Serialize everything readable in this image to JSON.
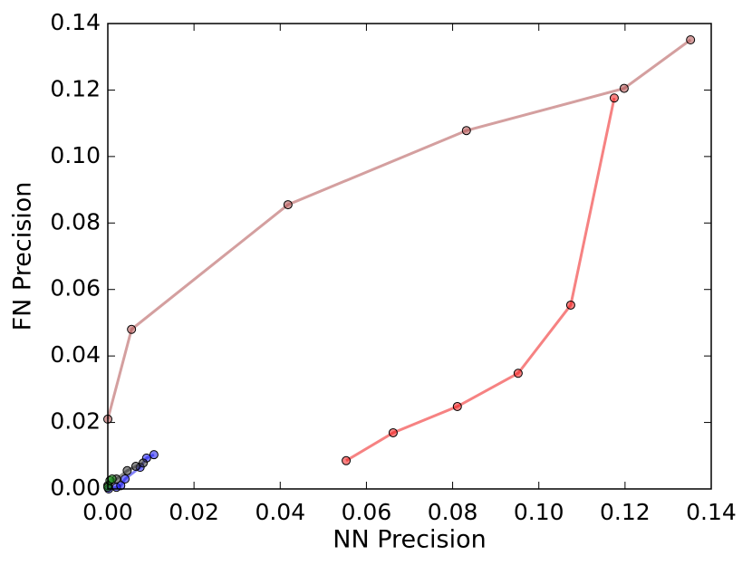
{
  "chart_data": {
    "type": "line",
    "x_label": "NN Precision",
    "y_label": "FN Precision",
    "xlim": [
      0,
      0.14
    ],
    "ylim": [
      0,
      0.14
    ],
    "xticks": [
      {
        "value": 0,
        "label": "0.00"
      },
      {
        "value": 0.02,
        "label": "0.02"
      },
      {
        "value": 0.04,
        "label": "0.04"
      },
      {
        "value": 0.06,
        "label": "0.06"
      },
      {
        "value": 0.08,
        "label": "0.08"
      },
      {
        "value": 0.1,
        "label": "0.10"
      },
      {
        "value": 0.12,
        "label": "0.12"
      },
      {
        "value": 0.14,
        "label": "0.14"
      }
    ],
    "yticks": [
      {
        "value": 0,
        "label": "0.00"
      },
      {
        "value": 0.02,
        "label": "0.02"
      },
      {
        "value": 0.04,
        "label": "0.04"
      },
      {
        "value": 0.06,
        "label": "0.06"
      },
      {
        "value": 0.08,
        "label": "0.08"
      },
      {
        "value": 0.1,
        "label": "0.10"
      },
      {
        "value": 0.12,
        "label": "0.12"
      },
      {
        "value": 0.14,
        "label": "0.14"
      }
    ],
    "grid": false,
    "series": [
      {
        "color": "#b05050",
        "x": [
          0,
          0.0055,
          0.0418,
          0.0832,
          0.1198,
          0.1352
        ],
        "values": [
          0.021,
          0.048,
          0.0855,
          0.1078,
          0.1205,
          0.1351
        ]
      },
      {
        "color": "#ee1c1c",
        "x": [
          0.0553,
          0.0662,
          0.0811,
          0.0952,
          0.1074,
          0.1175
        ],
        "values": [
          0.0085,
          0.0169,
          0.0248,
          0.0348,
          0.0553,
          0.1176
        ]
      },
      {
        "color": "#1a1aee",
        "x": [
          0.0002,
          0.002,
          0.003,
          0.004,
          0.0075,
          0.009,
          0.0107
        ],
        "values": [
          0.0,
          0.0005,
          0.001,
          0.003,
          0.0065,
          0.0093,
          0.0103
        ]
      },
      {
        "color": "#333333",
        "x": [
          0,
          0.002,
          0.0045,
          0.0065,
          0.0082
        ],
        "values": [
          0.001,
          0.003,
          0.0055,
          0.0068,
          0.0078
        ]
      },
      {
        "color": "#1a8a1a",
        "x": [
          0,
          0.0005,
          0.001
        ],
        "values": [
          0.0005,
          0.0025,
          0.003
        ]
      }
    ]
  }
}
